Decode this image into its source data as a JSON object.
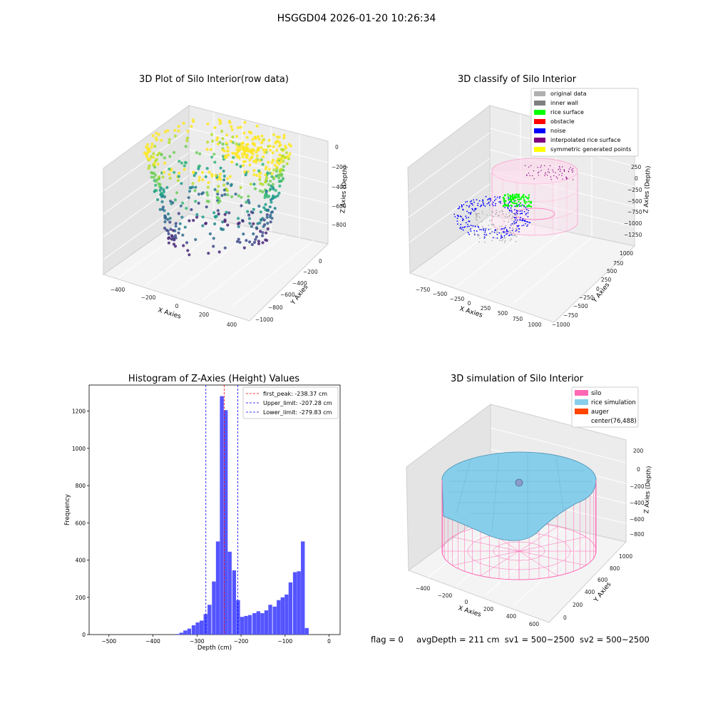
{
  "suptitle": "HSGGD04 2026-01-20 10:26:34",
  "status": {
    "flag": "flag = 0",
    "avg_depth": "avgDepth = 211 cm",
    "sv1": "sv1 = 500~2500",
    "sv2": "sv2 = 500~2500"
  },
  "colors": {
    "bar": "#5555ff",
    "peak_line": "#ff0000",
    "limit_line": "#0000ff",
    "silo": "#ff69b4",
    "rice_simulation": "#87ceeb",
    "auger": "#ff4500",
    "original_data": "#b0b0b0",
    "inner_wall": "#808080",
    "rice_surface": "#00ff00",
    "obstacle": "#ff0000",
    "noise": "#0000ff",
    "interpolated_rice_surface": "#800080",
    "symmetric_generated_points": "#ffff00"
  },
  "chart_data": [
    {
      "type": "scatter",
      "title": "3D Plot of Silo Interior(row data)",
      "xlabel": "X Axies",
      "ylabel": "Y Axies",
      "zlabel": "Z Axies (Depth)",
      "x_ticks": [
        "−400",
        "−200",
        "0",
        "200",
        "400"
      ],
      "y_ticks": [
        "0",
        "−200",
        "−400",
        "−600",
        "−800",
        "−1000"
      ],
      "z_ticks": [
        "0",
        "−200",
        "−400",
        "−600",
        "−800"
      ],
      "xlim": [
        -480,
        480
      ],
      "ylim": [
        -1050,
        80
      ],
      "zlim": [
        -950,
        40
      ],
      "colormap": "viridis"
    },
    {
      "type": "scatter",
      "title": "3D classify of Silo Interior",
      "xlabel": "X Axies",
      "ylabel": "Y Axies",
      "zlabel": "Z Axies (Depth)",
      "x_ticks": [
        "−750",
        "−500",
        "−250",
        "0",
        "250",
        "500",
        "750",
        "1000"
      ],
      "y_ticks": [
        "1000",
        "750",
        "500",
        "250",
        "0",
        "−250",
        "−500",
        "−750",
        "−1000"
      ],
      "z_ticks": [
        "250",
        "0",
        "−250",
        "−500",
        "−750",
        "−1000",
        "−1250"
      ],
      "legend": [
        "original data",
        "inner wall",
        "rice surface",
        "obstacle",
        "noise",
        "interpolated rice surface",
        "symmetric generated points"
      ],
      "legend_loc": "upper right"
    },
    {
      "type": "bar",
      "title": "Histogram of Z-Axies (Height) Values",
      "xlabel": "Depth (cm)",
      "ylabel": "Frequency",
      "xlim": [
        -545,
        25
      ],
      "ylim": [
        0,
        1340
      ],
      "x_ticks": [
        -500,
        -400,
        -300,
        -200,
        -100,
        0
      ],
      "x_tick_labels": [
        "−500",
        "−400",
        "−300",
        "−200",
        "−100",
        "0"
      ],
      "y_ticks": [
        0,
        200,
        400,
        600,
        800,
        1000,
        1200
      ],
      "bin_width": 9.2,
      "bins_start": [
        -349,
        -340,
        -331,
        -322,
        -312,
        -303,
        -294,
        -285,
        -276,
        -266,
        -257,
        -248,
        -239,
        -230,
        -220,
        -211,
        -202,
        -193,
        -184,
        -174,
        -165,
        -156,
        -147,
        -138,
        -128,
        -119,
        -110,
        -101,
        -92,
        -82,
        -73,
        -64,
        -55,
        -46,
        -36,
        -27,
        -18,
        -9,
        0
      ],
      "counts": [
        3,
        10,
        22,
        32,
        50,
        65,
        75,
        110,
        160,
        285,
        500,
        1280,
        1205,
        445,
        345,
        185,
        95,
        100,
        105,
        115,
        125,
        115,
        130,
        160,
        150,
        185,
        200,
        215,
        280,
        335,
        340,
        500,
        35,
        0,
        0,
        0,
        0,
        0,
        0
      ],
      "vlines": [
        {
          "label": "first_peak: -238.37 cm",
          "x": -238.37,
          "style": "peak"
        },
        {
          "label": "Upper_limit: -207.28 cm",
          "x": -207.28,
          "style": "limit"
        },
        {
          "label": "Lower_limit: -279.83 cm",
          "x": -279.83,
          "style": "limit"
        }
      ],
      "legend_loc": "upper right"
    },
    {
      "type": "surface",
      "title": "3D simulation of Silo Interior",
      "xlabel": "X Axies",
      "ylabel": "Y Axies",
      "zlabel": "Z Axies (Depth)",
      "x_ticks": [
        "−400",
        "−200",
        "0",
        "200",
        "400",
        "600"
      ],
      "y_ticks": [
        "1000",
        "800",
        "600",
        "400",
        "200",
        "0"
      ],
      "z_ticks": [
        "200",
        "0",
        "−200",
        "−400",
        "−600",
        "−800"
      ],
      "legend": [
        "silo",
        "rice simulation",
        "auger",
        "center(76,488)"
      ],
      "legend_loc": "upper right"
    }
  ]
}
